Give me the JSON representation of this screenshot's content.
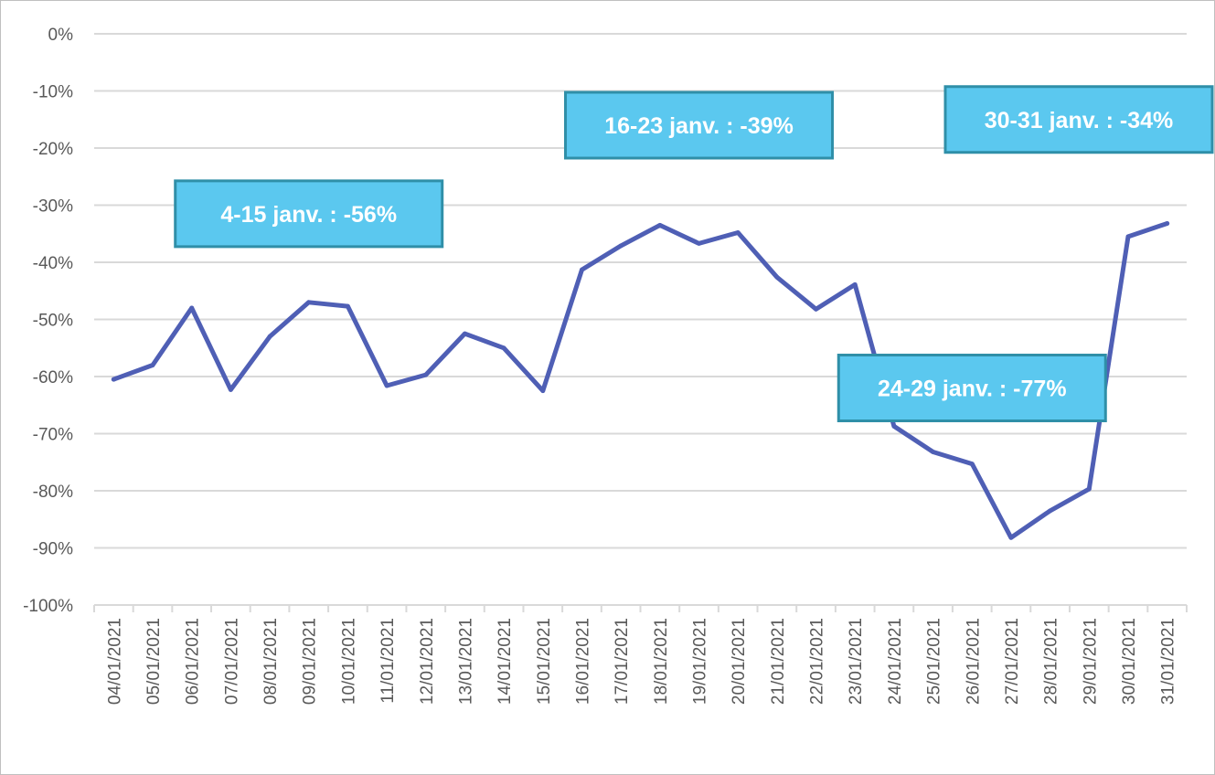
{
  "chart_data": {
    "type": "line",
    "title": "",
    "xlabel": "",
    "ylabel": "",
    "ylim": [
      -100,
      0
    ],
    "y_ticks": [
      "0%",
      "-10%",
      "-20%",
      "-30%",
      "-40%",
      "-50%",
      "-60%",
      "-70%",
      "-80%",
      "-90%",
      "-100%"
    ],
    "y_tick_values": [
      0,
      -10,
      -20,
      -30,
      -40,
      -50,
      -60,
      -70,
      -80,
      -90,
      -100
    ],
    "grid": "horizontal",
    "legend": "none",
    "line_color": "#4f5fb5",
    "categories": [
      "04/01/2021",
      "05/01/2021",
      "06/01/2021",
      "07/01/2021",
      "08/01/2021",
      "09/01/2021",
      "10/01/2021",
      "11/01/2021",
      "12/01/2021",
      "13/01/2021",
      "14/01/2021",
      "15/01/2021",
      "16/01/2021",
      "17/01/2021",
      "18/01/2021",
      "19/01/2021",
      "20/01/2021",
      "21/01/2021",
      "22/01/2021",
      "23/01/2021",
      "24/01/2021",
      "25/01/2021",
      "26/01/2021",
      "27/01/2021",
      "28/01/2021",
      "29/01/2021",
      "30/01/2021",
      "31/01/2021"
    ],
    "series": [
      {
        "values": [
          -60.5,
          -58,
          -48,
          -62.3,
          -53,
          -47,
          -47.7,
          -61.6,
          -59.7,
          -52.5,
          -55,
          -62.5,
          -41.3,
          -37.1,
          -33.5,
          -36.7,
          -34.8,
          -42.6,
          -48.2,
          -43.9,
          -68.7,
          -73.2,
          -75.3,
          -88.2,
          -83.5,
          -79.7,
          -35.5,
          -33.2
        ]
      }
    ],
    "annotations": [
      {
        "text": "4-15 janv. : -56%",
        "anchor_category": "09/01/2021",
        "level": -31.5
      },
      {
        "text": "16-23 janv. : -39%",
        "anchor_category": "19/01/2021",
        "level": -16
      },
      {
        "text": "30-31 janv. : -34%",
        "anchor_category": "29/01/2021",
        "level": -15
      },
      {
        "text": "24-29 janv. : -77%",
        "anchor_category": "26/01/2021",
        "level": -62
      }
    ],
    "annotation_fill": "#5bc8ef",
    "annotation_border": "#2f8fa8"
  }
}
